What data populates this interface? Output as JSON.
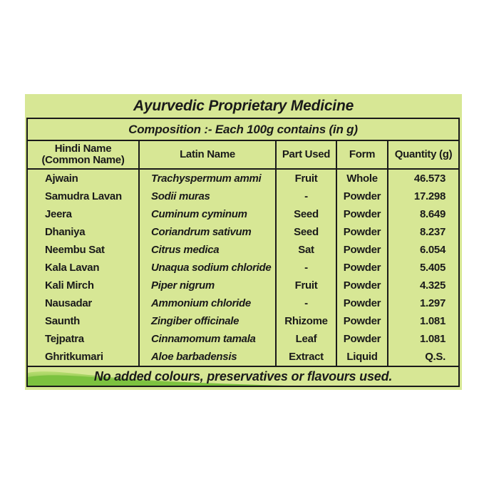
{
  "label": {
    "title": "Ayurvedic Proprietary Medicine",
    "composition_heading": "Composition :- Each 100g contains (in g)",
    "columns": {
      "hindi": "Hindi Name",
      "hindi_sub": "(Common Name)",
      "latin": "Latin Name",
      "part_used": "Part Used",
      "form": "Form",
      "quantity": "Quantity (g)"
    },
    "rows": [
      {
        "hindi": "Ajwain",
        "latin": "Trachyspermum ammi",
        "part": "Fruit",
        "form": "Whole",
        "qty": "46.573"
      },
      {
        "hindi": "Samudra Lavan",
        "latin": "Sodii muras",
        "part": "-",
        "form": "Powder",
        "qty": "17.298"
      },
      {
        "hindi": "Jeera",
        "latin": "Cuminum cyminum",
        "part": "Seed",
        "form": "Powder",
        "qty": "8.649"
      },
      {
        "hindi": "Dhaniya",
        "latin": "Coriandrum sativum",
        "part": "Seed",
        "form": "Powder",
        "qty": "8.237"
      },
      {
        "hindi": "Neembu Sat",
        "latin": "Citrus medica",
        "part": "Sat",
        "form": "Powder",
        "qty": "6.054"
      },
      {
        "hindi": "Kala Lavan",
        "latin": "Unaqua sodium chloride",
        "part": "-",
        "form": "Powder",
        "qty": "5.405"
      },
      {
        "hindi": "Kali Mirch",
        "latin": "Piper nigrum",
        "part": "Fruit",
        "form": "Powder",
        "qty": "4.325"
      },
      {
        "hindi": "Nausadar",
        "latin": "Ammonium chloride",
        "part": "-",
        "form": "Powder",
        "qty": "1.297"
      },
      {
        "hindi": "Saunth",
        "latin": "Zingiber officinale",
        "part": "Rhizome",
        "form": "Powder",
        "qty": "1.081"
      },
      {
        "hindi": "Tejpatra",
        "latin": "Cinnamomum tamala",
        "part": "Leaf",
        "form": "Powder",
        "qty": "1.081"
      },
      {
        "hindi": "Ghritkumari",
        "latin": "Aloe barbadensis",
        "part": "Extract",
        "form": "Liquid",
        "qty": "Q.S."
      }
    ],
    "footer_note": "No added colours, preservatives or flavours used."
  },
  "colors": {
    "panel_background": "#d7e795",
    "border_and_text": "#1a1a1a",
    "swoosh_light": "#b9dd72",
    "swoosh_dark": "#72ba37"
  }
}
